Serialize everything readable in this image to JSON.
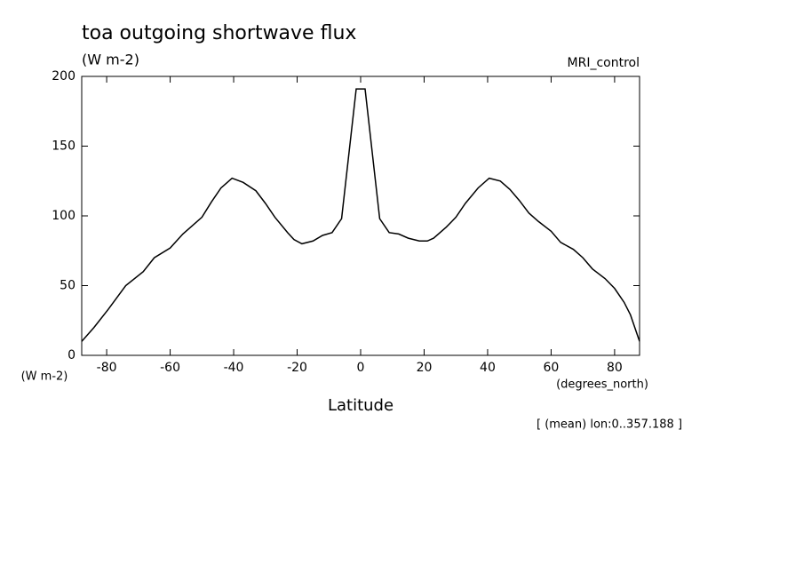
{
  "chart_data": {
    "type": "line",
    "title": "toa outgoing shortwave flux",
    "subtitle": "(W m-2)",
    "annotation": "MRI_control",
    "y_label": "(W m-2)",
    "x_unit_label": "(degrees_north)",
    "x_label": "Latitude",
    "note": "[ (mean) lon:0..357.188 ]",
    "color": "#000000",
    "x": [
      -87.86,
      -84,
      -79.5,
      -74,
      -68.5,
      -65,
      -60,
      -56,
      -50,
      -47,
      -44,
      -40.5,
      -37,
      -33,
      -30,
      -27,
      -23,
      -21,
      -18.5,
      -15,
      -12,
      -9,
      -6,
      -1.4,
      1.4,
      6,
      9,
      12,
      15,
      18.5,
      21,
      23,
      27,
      30,
      33,
      37,
      40.5,
      44,
      47,
      50,
      53,
      56,
      60,
      63,
      67,
      70,
      73,
      77,
      80,
      83,
      85,
      87.86
    ],
    "values": [
      10,
      20,
      33,
      50,
      60,
      70,
      77,
      87,
      99,
      110,
      120,
      127,
      124,
      118,
      109,
      99,
      88,
      83,
      80,
      82,
      86,
      88,
      98,
      191,
      191,
      98,
      88,
      87,
      84,
      82,
      82,
      84,
      92,
      99,
      109,
      120,
      127,
      125,
      119,
      111,
      102,
      96,
      89,
      81,
      76,
      70,
      62,
      55,
      48,
      38,
      29,
      10
    ],
    "xlim": [
      -87.86,
      87.86
    ],
    "ylim": [
      0,
      200
    ],
    "xticks": [
      -80,
      -60,
      -40,
      -20,
      0,
      20,
      40,
      60,
      80
    ],
    "yticks": [
      0,
      50,
      100,
      150,
      200
    ]
  }
}
